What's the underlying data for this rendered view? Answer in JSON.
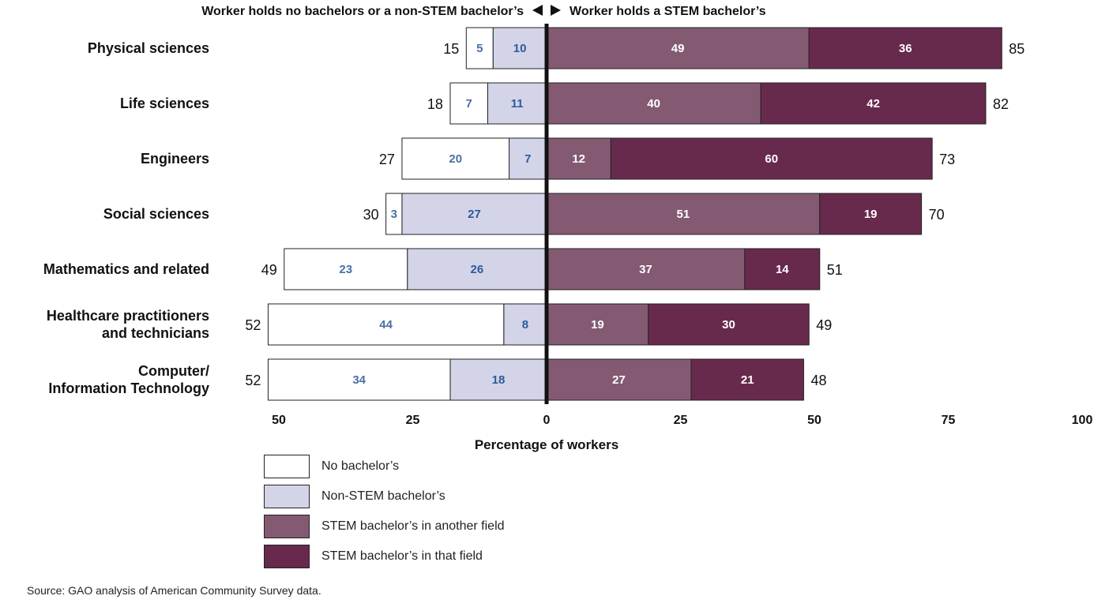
{
  "chart_data": {
    "type": "bar",
    "orientation": "horizontal-diverging",
    "header_left": "Worker holds no bachelors or a non-STEM bachelor’s",
    "header_right": "Worker holds a STEM bachelor’s",
    "xlabel": "Percentage of workers",
    "xlim": [
      -50,
      100
    ],
    "x_ticks": [
      {
        "value": -50,
        "label": "50"
      },
      {
        "value": -25,
        "label": "25"
      },
      {
        "value": 0,
        "label": "0"
      },
      {
        "value": 25,
        "label": "25"
      },
      {
        "value": 50,
        "label": "50"
      },
      {
        "value": 75,
        "label": "75"
      },
      {
        "value": 100,
        "label": "100"
      }
    ],
    "categories": [
      "Physical sciences",
      "Life sciences",
      "Engineers",
      "Social sciences",
      "Mathematics and related",
      "Healthcare practitioners\nand technicians",
      "Computer/\nInformation Technology"
    ],
    "series": [
      {
        "name": "No bachelor’s",
        "side": "left",
        "color": "#ffffff",
        "label_color": "#4a6fa5",
        "values": [
          5,
          7,
          20,
          3,
          23,
          44,
          34
        ]
      },
      {
        "name": "Non-STEM bachelor’s",
        "side": "left",
        "color": "#d3d4e8",
        "label_color": "#2e5a9a",
        "values": [
          10,
          11,
          7,
          27,
          26,
          8,
          18
        ]
      },
      {
        "name": "STEM bachelor’s in another field",
        "side": "right",
        "color": "#845a73",
        "label_color": "#ffffff",
        "values": [
          49,
          40,
          12,
          51,
          37,
          19,
          27
        ]
      },
      {
        "name": "STEM bachelor’s in that field",
        "side": "right",
        "color": "#682a4c",
        "label_color": "#ffffff",
        "values": [
          36,
          42,
          60,
          19,
          14,
          30,
          21
        ]
      }
    ],
    "left_totals": [
      15,
      18,
      27,
      30,
      49,
      52,
      52
    ],
    "right_totals": [
      85,
      82,
      73,
      70,
      51,
      49,
      48
    ]
  },
  "source": "Source: GAO analysis of American Community Survey data."
}
